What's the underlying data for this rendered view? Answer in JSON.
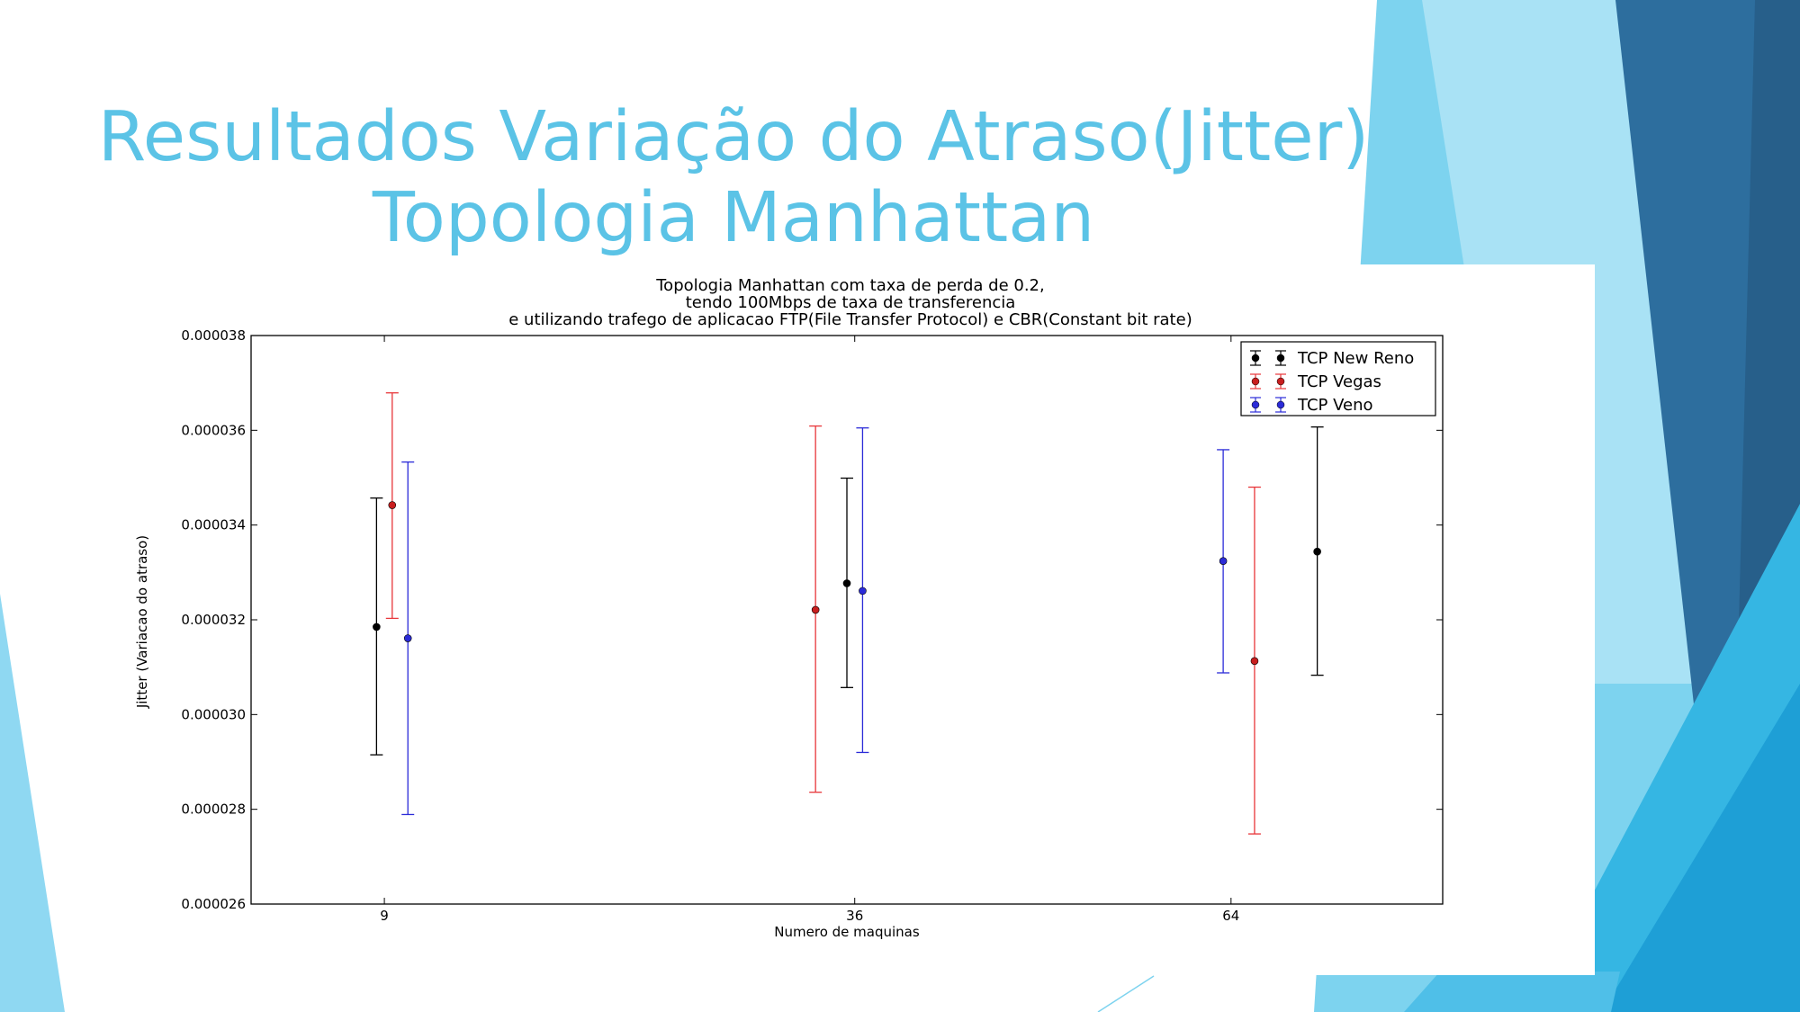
{
  "slide": {
    "title_line1": "Resultados Variação do Atraso(Jitter)",
    "title_line2": "Topologia Manhattan"
  },
  "colors": {
    "title": "#5bc3e6",
    "tcp_new_reno": "#000000",
    "tcp_vegas": "#e8363a",
    "tcp_veno": "#2b2bd8",
    "bg_light": "#7dd3ef",
    "bg_mid": "#35b6e3",
    "bg_dark": "#2d6e9e"
  },
  "chart_data": {
    "type": "scatter",
    "style": "errorbar",
    "title_lines": [
      "Topologia Manhattan com taxa de perda de 0.2,",
      "tendo 100Mbps de taxa de transferencia",
      "e utilizando trafego de aplicacao FTP(File Transfer Protocol) e CBR(Constant bit rate)"
    ],
    "xlabel": "Numero de maquinas",
    "ylabel": "Jitter (Variacao do atraso)",
    "categories": [
      "9",
      "36",
      "64"
    ],
    "ylim": [
      2.6e-05,
      3.8e-05
    ],
    "yticks": [
      "0.000026",
      "0.000028",
      "0.000030",
      "0.000032",
      "0.000034",
      "0.000036",
      "0.000038"
    ],
    "grid": false,
    "legend_position": "top-right",
    "series": [
      {
        "name": "TCP New Reno",
        "color": "#000000",
        "x": [
          8,
          38,
          68
        ],
        "y": [
          3.185e-05,
          3.277e-05,
          3.344e-05
        ],
        "err_low": [
          2.915e-05,
          3.057e-05,
          3.083e-05
        ],
        "err_high": [
          3.457e-05,
          3.499e-05,
          3.607e-05
        ]
      },
      {
        "name": "TCP Vegas",
        "color": "#e8363a",
        "x": [
          9,
          36,
          64
        ],
        "y": [
          3.442e-05,
          3.221e-05,
          3.113e-05
        ],
        "err_low": [
          3.203e-05,
          2.836e-05,
          2.748e-05
        ],
        "err_high": [
          3.679e-05,
          3.609e-05,
          3.48e-05
        ]
      },
      {
        "name": "TCP Veno",
        "color": "#2b2bd8",
        "x": [
          10,
          39,
          62
        ],
        "y": [
          3.161e-05,
          3.261e-05,
          3.324e-05
        ],
        "err_low": [
          2.789e-05,
          2.92e-05,
          3.088e-05
        ],
        "err_high": [
          3.533e-05,
          3.605e-05,
          3.559e-05
        ]
      }
    ]
  }
}
